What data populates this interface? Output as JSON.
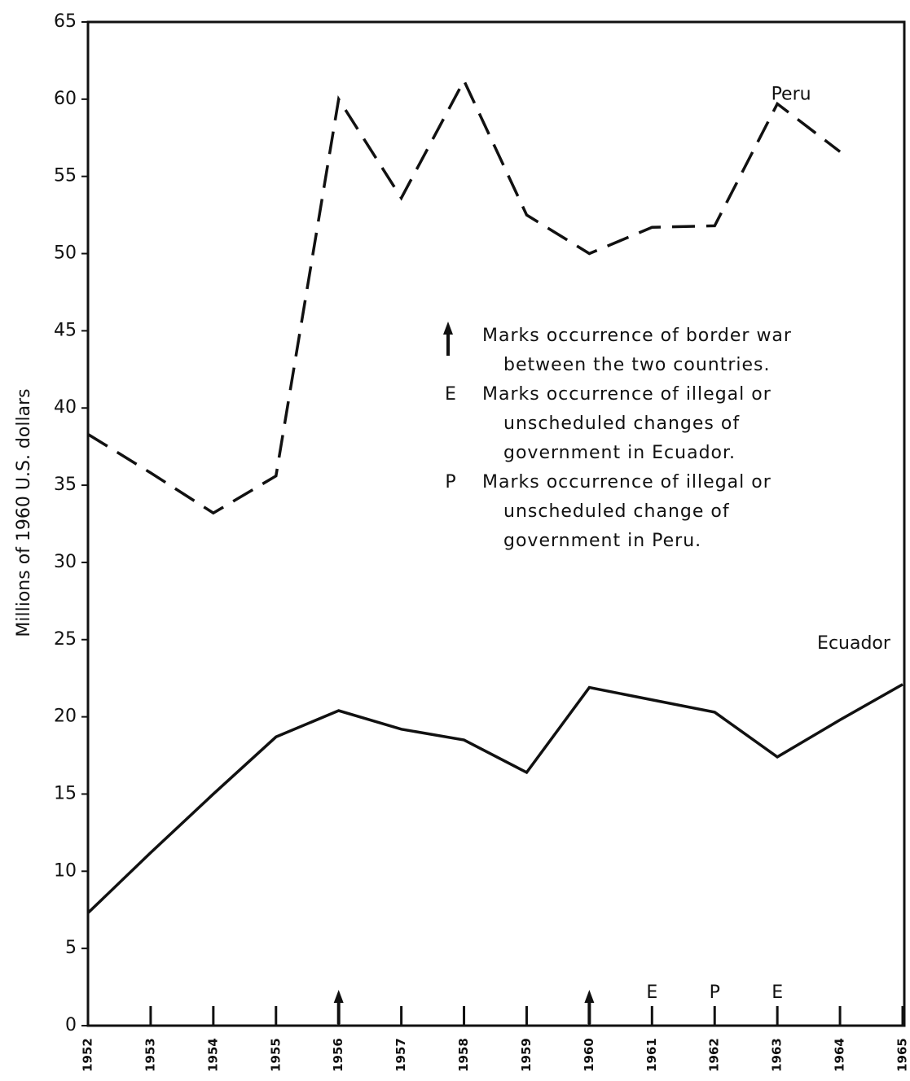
{
  "chart_data": {
    "type": "line",
    "y_label": "Millions of 1960 U.S. dollars",
    "x": [
      1952,
      1953,
      1954,
      1955,
      1956,
      1957,
      1958,
      1959,
      1960,
      1961,
      1962,
      1963,
      1964,
      1965
    ],
    "xlim": [
      1952,
      1965
    ],
    "xticks": [
      1952,
      1953,
      1954,
      1955,
      1956,
      1957,
      1958,
      1959,
      1960,
      1961,
      1962,
      1963,
      1964,
      1965
    ],
    "ylim": [
      0,
      65
    ],
    "yticks": [
      0,
      5,
      10,
      15,
      20,
      25,
      30,
      35,
      40,
      45,
      50,
      55,
      60,
      65
    ],
    "series": [
      {
        "name": "Peru",
        "color": "#111111",
        "dash": true,
        "values": [
          38.3,
          35.8,
          33.2,
          35.6,
          60.0,
          53.6,
          61.2,
          52.5,
          50.0,
          51.7,
          51.8,
          59.7,
          56.6,
          null
        ]
      },
      {
        "name": "Ecuador",
        "color": "#111111",
        "dash": false,
        "values": [
          7.3,
          11.2,
          15.0,
          18.7,
          20.4,
          19.2,
          18.5,
          16.4,
          21.9,
          21.1,
          20.3,
          17.4,
          19.8,
          22.1
        ]
      }
    ],
    "events": [
      {
        "x": 1956,
        "marker": "arrow"
      },
      {
        "x": 1960,
        "marker": "arrow"
      },
      {
        "x": 1961,
        "label": "E"
      },
      {
        "x": 1962,
        "label": "P"
      },
      {
        "x": 1963,
        "label": "E"
      }
    ],
    "notes": [
      {
        "marker": "arrow",
        "lines": [
          "Marks occurrence of border war",
          "between the two countries."
        ]
      },
      {
        "label": "E",
        "lines": [
          "Marks occurrence of illegal or",
          "unscheduled changes of",
          "government in Ecuador."
        ]
      },
      {
        "label": "P",
        "lines": [
          "Marks occurrence of illegal or",
          "unscheduled change of",
          "government in Peru."
        ]
      }
    ]
  }
}
